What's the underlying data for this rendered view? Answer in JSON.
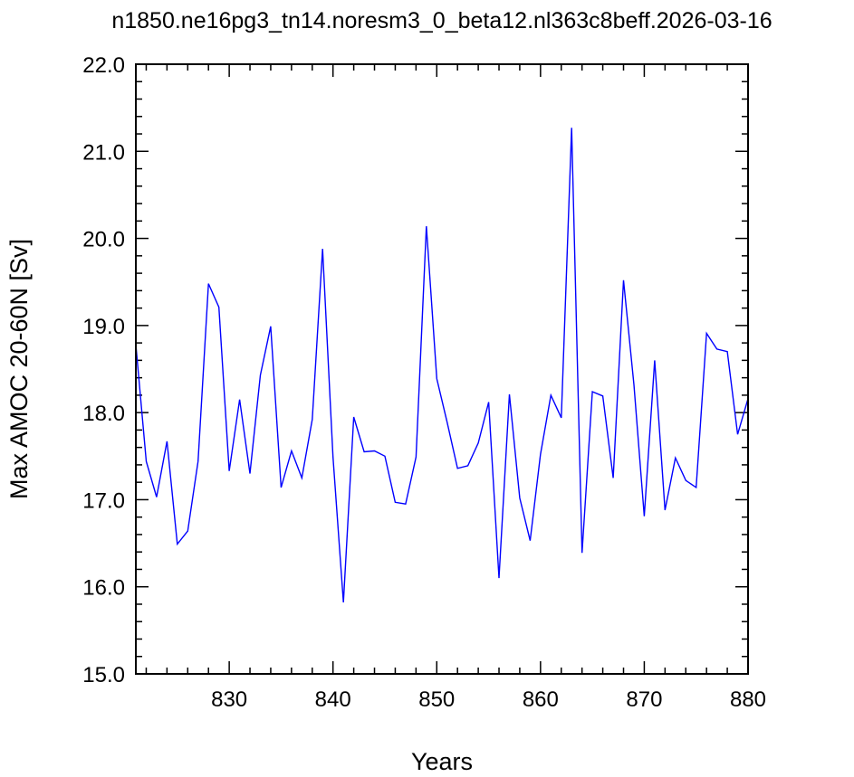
{
  "chart_data": {
    "type": "line",
    "title": "n1850.ne16pg3_tn14.noresm3_0_beta12.nl363c8beff.2026-03-16",
    "xlabel": "Years",
    "ylabel": "Max AMOC 20-60N [Sv]",
    "xlim": [
      821,
      880
    ],
    "ylim": [
      15.0,
      22.0
    ],
    "x_ticks": [
      830,
      840,
      850,
      860,
      870,
      880
    ],
    "y_ticks": [
      15.0,
      16.0,
      17.0,
      18.0,
      19.0,
      20.0,
      21.0,
      22.0
    ],
    "y_tick_labels": [
      "15.0",
      "16.0",
      "17.0",
      "18.0",
      "19.0",
      "20.0",
      "21.0",
      "22.0"
    ],
    "grid": false,
    "legend": "none",
    "line_color": "#0000ff",
    "series": [
      {
        "x": [
          821,
          822,
          823,
          824,
          825,
          826,
          827,
          828,
          829,
          830,
          831,
          832,
          833,
          834,
          835,
          836,
          837,
          838,
          839,
          840,
          841,
          842,
          843,
          844,
          845,
          846,
          847,
          848,
          849,
          850,
          851,
          852,
          853,
          854,
          855,
          856,
          857,
          858,
          859,
          860,
          861,
          862,
          863,
          864,
          865,
          866,
          867,
          868,
          869,
          870,
          871,
          872,
          873,
          874,
          875,
          876,
          877,
          878,
          879,
          880
        ],
        "values": [
          18.78,
          17.44,
          17.03,
          17.67,
          16.49,
          16.64,
          17.44,
          19.48,
          19.21,
          17.33,
          18.15,
          17.3,
          18.43,
          18.99,
          17.14,
          17.56,
          17.25,
          17.92,
          19.88,
          17.49,
          15.82,
          17.95,
          17.55,
          17.56,
          17.5,
          16.97,
          16.95,
          17.49,
          20.14,
          18.39,
          17.89,
          17.36,
          17.39,
          17.65,
          18.12,
          16.1,
          18.21,
          17.02,
          16.53,
          17.52,
          18.2,
          17.94,
          21.27,
          16.39,
          18.24,
          18.19,
          17.25,
          19.52,
          18.32,
          16.81,
          18.6,
          16.88,
          17.48,
          17.22,
          17.14,
          18.91,
          18.73,
          18.7,
          17.75,
          18.16
        ]
      }
    ]
  }
}
